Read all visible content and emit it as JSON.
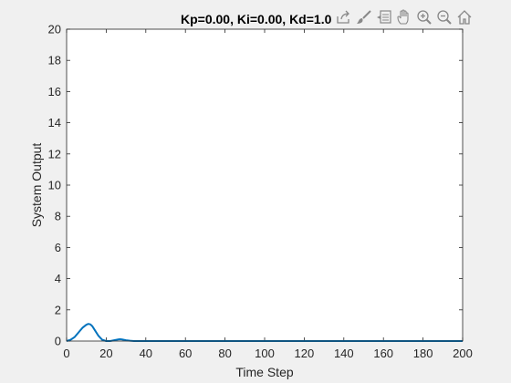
{
  "chart_data": {
    "type": "line",
    "title": "Kp=0.00, Ki=0.00, Kd=1.0",
    "xlabel": "Time Step",
    "ylabel": "System Output",
    "xlim": [
      0,
      200
    ],
    "ylim": [
      0,
      20
    ],
    "xticks": [
      0,
      20,
      40,
      60,
      80,
      100,
      120,
      140,
      160,
      180,
      200
    ],
    "yticks": [
      0,
      2,
      4,
      6,
      8,
      10,
      12,
      14,
      16,
      18,
      20
    ],
    "grid": false,
    "series_color": "#0072bd",
    "series": [
      {
        "x": [
          0,
          2,
          4,
          6,
          8,
          10,
          11,
          12,
          13,
          14,
          16,
          18,
          20,
          22,
          24,
          26,
          27,
          28,
          30,
          32,
          34,
          36,
          40,
          50,
          60,
          80,
          100,
          120,
          140,
          160,
          180,
          200
        ],
        "y": [
          0,
          0.08,
          0.25,
          0.55,
          0.85,
          1.05,
          1.1,
          1.07,
          0.95,
          0.75,
          0.35,
          0.08,
          0.0,
          0.0,
          0.05,
          0.1,
          0.12,
          0.1,
          0.05,
          0.02,
          0.0,
          0.0,
          0.0,
          0.0,
          0.0,
          0.0,
          0.0,
          0.0,
          0.0,
          0.0,
          0.0,
          0.0
        ]
      }
    ]
  },
  "toolbar": {
    "icons": [
      "export-icon",
      "brush-icon",
      "data-tips-icon",
      "pan-icon",
      "zoom-in-icon",
      "zoom-out-icon",
      "home-icon"
    ]
  }
}
